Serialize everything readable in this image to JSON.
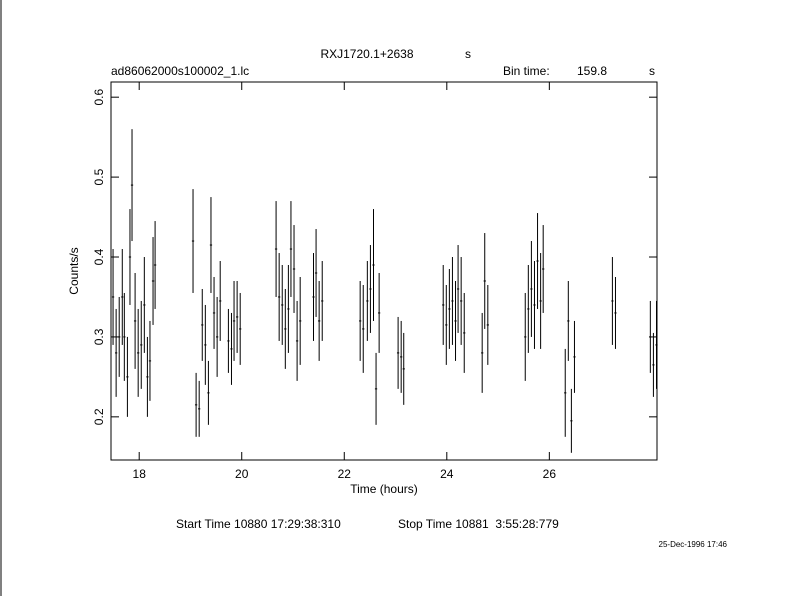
{
  "chart_data": {
    "type": "errorbar",
    "title": "RXJ1720.1+2638",
    "title_unit": "s",
    "file_name": "ad86062000s100002_1.lc",
    "bin_time_label": "Bin time:",
    "bin_time": 159.8,
    "bin_time_unit": "s",
    "x_label": "Time (hours)",
    "y_label": "Counts/s",
    "start_time": "Start Time 10880 17:29:38:310",
    "stop_time": "Stop Time 10881  3:55:28:779",
    "date_stamp": "25-Dec-1996 17:46",
    "color": "#000000",
    "xlim": [
      17.45,
      28.1
    ],
    "xticks": [
      18,
      20,
      22,
      24,
      26
    ],
    "ylim": [
      0.146,
      0.619
    ],
    "yticks": [
      0.2,
      0.3,
      0.4,
      0.5,
      0.6
    ],
    "x": [
      17.49,
      17.55,
      17.61,
      17.67,
      17.71,
      17.77,
      17.82,
      17.86,
      17.92,
      17.98,
      18.04,
      18.1,
      18.16,
      18.21,
      18.27,
      18.31,
      19.05,
      19.11,
      19.17,
      19.23,
      19.29,
      19.35,
      19.4,
      19.46,
      19.52,
      19.58,
      19.74,
      19.8,
      19.85,
      19.91,
      19.97,
      20.67,
      20.73,
      20.79,
      20.85,
      20.91,
      20.96,
      21.02,
      21.08,
      21.14,
      21.4,
      21.45,
      21.51,
      21.57,
      22.31,
      22.37,
      22.45,
      22.51,
      22.57,
      22.62,
      22.68,
      23.05,
      23.11,
      23.16,
      23.93,
      23.99,
      24.05,
      24.11,
      24.17,
      24.22,
      24.28,
      24.34,
      24.69,
      24.74,
      24.8,
      25.53,
      25.59,
      25.65,
      25.71,
      25.77,
      25.83,
      25.88,
      26.31,
      26.37,
      26.43,
      26.49,
      27.23,
      27.29,
      27.97,
      28.03,
      28.09
    ],
    "values": [
      0.35,
      0.28,
      0.3,
      0.35,
      0.3,
      0.25,
      0.4,
      0.49,
      0.32,
      0.28,
      0.29,
      0.34,
      0.25,
      0.27,
      0.37,
      0.39,
      0.42,
      0.215,
      0.21,
      0.315,
      0.29,
      0.23,
      0.415,
      0.33,
      0.3,
      0.345,
      0.295,
      0.285,
      0.32,
      0.325,
      0.31,
      0.41,
      0.35,
      0.34,
      0.31,
      0.335,
      0.41,
      0.385,
      0.295,
      0.32,
      0.35,
      0.38,
      0.32,
      0.345,
      0.32,
      0.31,
      0.345,
      0.36,
      0.39,
      0.235,
      0.33,
      0.28,
      0.275,
      0.26,
      0.34,
      0.315,
      0.335,
      0.345,
      0.32,
      0.36,
      0.345,
      0.305,
      0.28,
      0.37,
      0.315,
      0.3,
      0.335,
      0.36,
      0.34,
      0.395,
      0.345,
      0.385,
      0.23,
      0.32,
      0.195,
      0.275,
      0.345,
      0.33,
      0.3,
      0.265,
      0.29
    ],
    "errors": [
      0.06,
      0.055,
      0.05,
      0.06,
      0.055,
      0.05,
      0.06,
      0.07,
      0.06,
      0.055,
      0.055,
      0.06,
      0.05,
      0.05,
      0.055,
      0.055,
      0.065,
      0.04,
      0.035,
      0.045,
      0.05,
      0.04,
      0.06,
      0.045,
      0.05,
      0.05,
      0.04,
      0.045,
      0.05,
      0.045,
      0.045,
      0.06,
      0.055,
      0.05,
      0.05,
      0.055,
      0.06,
      0.055,
      0.05,
      0.055,
      0.055,
      0.055,
      0.05,
      0.05,
      0.05,
      0.055,
      0.05,
      0.055,
      0.07,
      0.045,
      0.05,
      0.045,
      0.045,
      0.045,
      0.05,
      0.05,
      0.05,
      0.055,
      0.05,
      0.055,
      0.055,
      0.05,
      0.05,
      0.06,
      0.05,
      0.055,
      0.055,
      0.06,
      0.055,
      0.06,
      0.06,
      0.055,
      0.055,
      0.05,
      0.04,
      0.045,
      0.055,
      0.045,
      0.045,
      0.04,
      0.055
    ]
  }
}
